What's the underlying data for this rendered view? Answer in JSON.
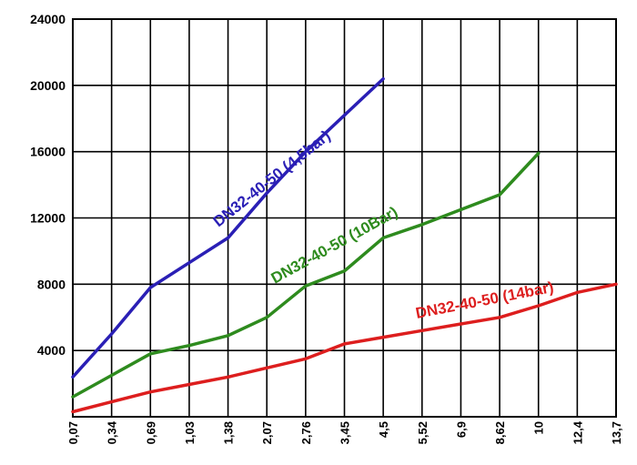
{
  "chart_data": {
    "type": "line",
    "title": "",
    "xlabel": "",
    "ylabel": "",
    "categories": [
      "0,07",
      "0,34",
      "0,69",
      "1,03",
      "1,38",
      "2,07",
      "2,76",
      "3,45",
      "4,5",
      "5,52",
      "6,9",
      "8,62",
      "10",
      "12,4",
      "13,7"
    ],
    "y_ticks": [
      "24000",
      "20000",
      "16000",
      "12000",
      "8000",
      "4000"
    ],
    "ylim": [
      0,
      24000
    ],
    "grid": true,
    "series": [
      {
        "name": "DN32-40-50  (4,5bar)",
        "color": "#2a1fb5",
        "values": [
          2400,
          5000,
          7800,
          9300,
          10800,
          13500,
          16000,
          18200,
          20400,
          null,
          null,
          null,
          null,
          null,
          null
        ]
      },
      {
        "name": "DN32-40-50 (10Bar)",
        "color": "#2e8b1e",
        "values": [
          1200,
          2500,
          3800,
          4300,
          4900,
          6000,
          7900,
          8800,
          10800,
          11600,
          12500,
          13400,
          15900,
          null,
          null
        ]
      },
      {
        "name": "DN32-40-50  (14bar)",
        "color": "#dd1e1e",
        "values": [
          300,
          900,
          1500,
          1950,
          2400,
          2950,
          3500,
          4400,
          4800,
          5200,
          5600,
          6000,
          6700,
          7500,
          8000
        ]
      }
    ]
  }
}
